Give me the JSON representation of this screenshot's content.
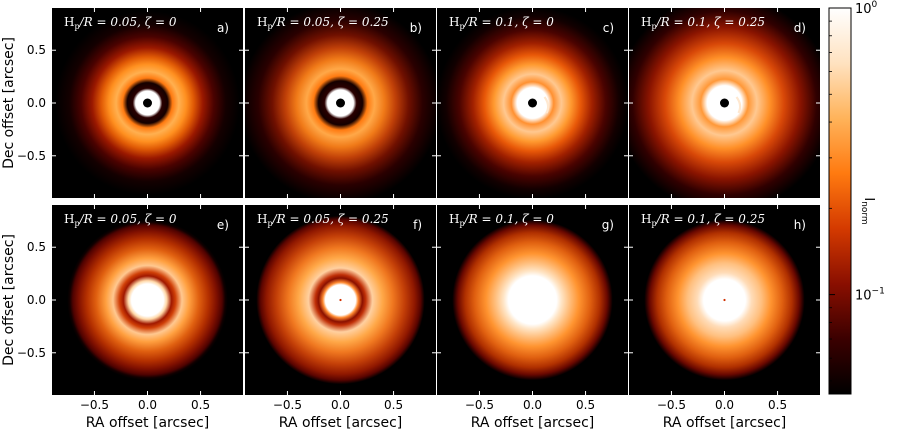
{
  "chart_data": {
    "type": "heatmap",
    "xlabel": "RA offset [arcsec]",
    "ylabel": "Dec offset [arcsec]",
    "xlim": [
      -0.9,
      0.9
    ],
    "ylim": [
      -0.9,
      0.9
    ],
    "xticks": [
      {
        "v": -0.5,
        "label": "−0.5"
      },
      {
        "v": 0.0,
        "label": "0.0"
      },
      {
        "v": 0.5,
        "label": "0.5"
      }
    ],
    "yticks": [
      {
        "v": 0.5,
        "label": "0.5"
      },
      {
        "v": 0.0,
        "label": "0.0"
      },
      {
        "v": -0.5,
        "label": "−0.5"
      }
    ],
    "colorbar": {
      "label": "I_norm",
      "scale": "log",
      "range": [
        0.045,
        1.0
      ],
      "ticks": [
        {
          "v": 1.0,
          "label": "10^0"
        },
        {
          "v": 0.1,
          "label": "10^-1"
        }
      ],
      "colormap": "gist_heat",
      "colors": [
        "#000000",
        "#3b0000",
        "#8a0f00",
        "#d43a00",
        "#ff7a10",
        "#ffb35a",
        "#ffe2c0",
        "#ffffff"
      ]
    },
    "panels": [
      {
        "id": "a)",
        "hp": "0.05",
        "zeta": "0",
        "row": 1,
        "col": 1
      },
      {
        "id": "b)",
        "hp": "0.05",
        "zeta": "0.25",
        "row": 1,
        "col": 2
      },
      {
        "id": "c)",
        "hp": "0.1",
        "zeta": "0",
        "row": 1,
        "col": 3
      },
      {
        "id": "d)",
        "hp": "0.1",
        "zeta": "0.25",
        "row": 1,
        "col": 4
      },
      {
        "id": "e)",
        "hp": "0.05",
        "zeta": "0",
        "row": 2,
        "col": 1
      },
      {
        "id": "f)",
        "hp": "0.05",
        "zeta": "0.25",
        "row": 2,
        "col": 2
      },
      {
        "id": "g)",
        "hp": "0.1",
        "zeta": "0",
        "row": 2,
        "col": 3
      },
      {
        "id": "h)",
        "hp": "0.1",
        "zeta": "0.25",
        "row": 2,
        "col": 4
      }
    ]
  }
}
